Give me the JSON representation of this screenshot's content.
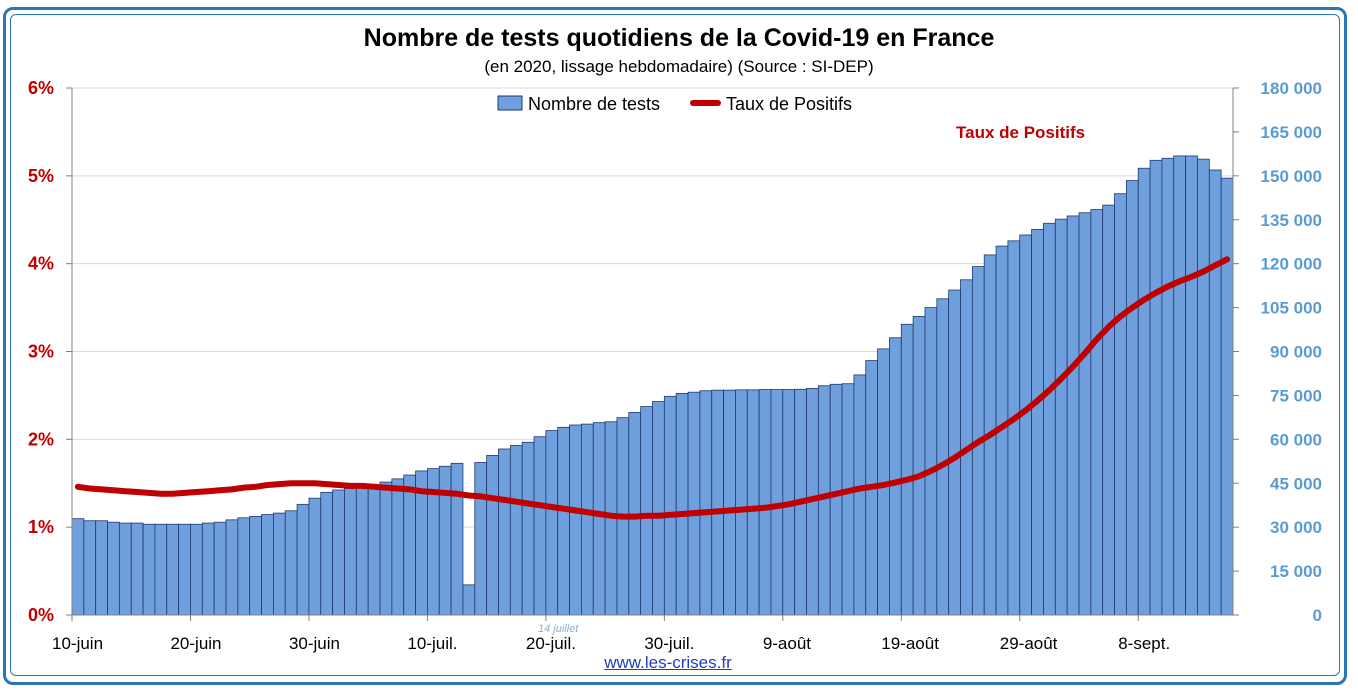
{
  "title": "Nombre de tests quotidiens de la Covid-19 en France",
  "subtitle": "(en 2020, lissage hebdomadaire) (Source : SI-DEP)",
  "source_link": "www.les-crises.fr",
  "colors": {
    "bars_fill": "#6f9fdc",
    "bars_stroke": "#1f3a6e",
    "line": "#c00000",
    "left_axis": "#c00000",
    "right_axis": "#5b9bd5",
    "frame": "#2e75b6",
    "grid": "#d9d9d9"
  },
  "chart_data": {
    "type": "bar+line",
    "x_tick_labels": [
      "10-juin",
      "20-juin",
      "30-juin",
      "10-juil.",
      "20-juil.",
      "30-juil.",
      "9-août",
      "19-août",
      "29-août",
      "8-sept."
    ],
    "y_left": {
      "ticks": [
        "0%",
        "1%",
        "2%",
        "3%",
        "4%",
        "5%",
        "6%"
      ],
      "range": [
        0,
        6
      ]
    },
    "y_right": {
      "ticks": [
        "0",
        "15 000",
        "30 000",
        "45 000",
        "60 000",
        "75 000",
        "90 000",
        "105 000",
        "120 000",
        "135 000",
        "150 000",
        "165 000",
        "180 000"
      ],
      "range": [
        0,
        180000
      ]
    },
    "grid": true,
    "legend": {
      "position": "top-center",
      "bars_label": "Nombre de tests",
      "line_label": "Taux de Positifs"
    },
    "annotations": {
      "line_label": "Taux de Positifs",
      "bar_note": "14 juillet"
    },
    "series": [
      {
        "name": "Nombre de tests",
        "type": "bar",
        "axis": "right",
        "values": [
          32900,
          32200,
          32200,
          31700,
          31400,
          31400,
          31000,
          31000,
          31000,
          31000,
          31000,
          31400,
          31700,
          32500,
          33200,
          33700,
          34300,
          34800,
          35600,
          37800,
          39900,
          41900,
          42700,
          43200,
          43600,
          44300,
          45400,
          46500,
          47800,
          49200,
          50000,
          50800,
          51800,
          10300,
          52100,
          54500,
          56700,
          57900,
          59000,
          60900,
          63000,
          64100,
          64900,
          65200,
          65700,
          66000,
          67400,
          69200,
          71200,
          72900,
          74700,
          75700,
          76100,
          76600,
          76800,
          76800,
          76900,
          76900,
          77000,
          77000,
          77000,
          77100,
          77400,
          78300,
          78800,
          79000,
          82000,
          86900,
          90900,
          94700,
          99300,
          102000,
          105000,
          108000,
          111000,
          114500,
          119000,
          123000,
          126000,
          127800,
          129800,
          131700,
          133800,
          135200,
          136300,
          137400,
          138500,
          140000,
          143900,
          148400,
          152600,
          155300,
          156000,
          156800,
          156800,
          155700,
          152000,
          149200
        ]
      },
      {
        "name": "Taux de Positifs",
        "type": "line",
        "axis": "left",
        "values": [
          1.46,
          1.44,
          1.43,
          1.42,
          1.41,
          1.4,
          1.39,
          1.38,
          1.38,
          1.39,
          1.4,
          1.41,
          1.42,
          1.43,
          1.45,
          1.46,
          1.48,
          1.49,
          1.5,
          1.5,
          1.5,
          1.49,
          1.48,
          1.47,
          1.47,
          1.46,
          1.45,
          1.44,
          1.43,
          1.41,
          1.4,
          1.39,
          1.38,
          1.36,
          1.35,
          1.33,
          1.31,
          1.29,
          1.27,
          1.25,
          1.23,
          1.21,
          1.19,
          1.17,
          1.15,
          1.13,
          1.12,
          1.12,
          1.13,
          1.13,
          1.14,
          1.15,
          1.16,
          1.17,
          1.18,
          1.19,
          1.2,
          1.21,
          1.22,
          1.24,
          1.26,
          1.29,
          1.32,
          1.35,
          1.38,
          1.41,
          1.44,
          1.46,
          1.48,
          1.51,
          1.54,
          1.58,
          1.64,
          1.71,
          1.79,
          1.88,
          1.97,
          2.05,
          2.14,
          2.23,
          2.33,
          2.44,
          2.56,
          2.69,
          2.83,
          2.98,
          3.14,
          3.28,
          3.4,
          3.5,
          3.59,
          3.67,
          3.74,
          3.8,
          3.85,
          3.91,
          3.98,
          4.05
        ]
      }
    ]
  }
}
